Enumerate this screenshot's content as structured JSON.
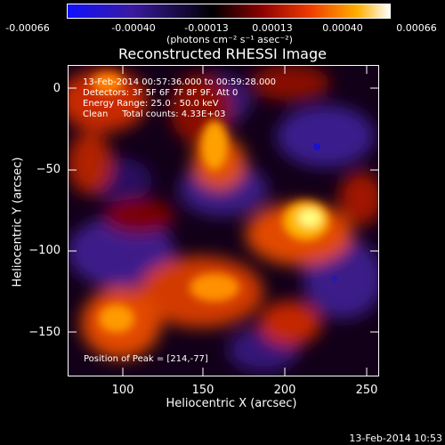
{
  "colorbar": {
    "tick_labels": [
      "-0.00066",
      "-0.00040",
      "-0.00013",
      "0.00013",
      "0.00040",
      "0.00066"
    ],
    "unit_label": "(photons cm⁻² s⁻¹ asec⁻²)",
    "colors": [
      "#1c10ff",
      "#3b1a8c",
      "#000000",
      "#7a0000",
      "#e63300",
      "#ffb000",
      "#ffffff"
    ]
  },
  "title": "Reconstructed RHESSI Image",
  "info": {
    "time_range": "13-Feb-2014 00:57:36.000 to 00:59:28.000",
    "detectors": "Detectors: 3F 5F 6F 7F 8F 9F, Att 0",
    "energy": "Energy Range: 25.0 - 50.0 keV",
    "method": "Clean     Total counts: 4.33E+03"
  },
  "peak": "Position of Peak = [214,-77]",
  "axes": {
    "xlabel": "Heliocentric X (arcsec)",
    "ylabel": "Heliocentric Y (arcsec)",
    "xticks": [
      "100",
      "150",
      "200",
      "250"
    ],
    "yticks": [
      "0",
      "−50",
      "−100",
      "−150"
    ]
  },
  "footer": "13-Feb-2014 10:53"
}
